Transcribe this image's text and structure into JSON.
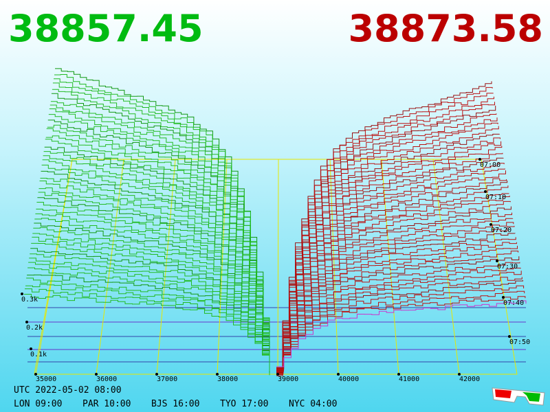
{
  "header": {
    "bid_price": "38857.45",
    "ask_price": "38873.58"
  },
  "price_axis": [
    "35000",
    "36000",
    "37000",
    "38000",
    "39000",
    "40000",
    "41000",
    "42000"
  ],
  "volume_axis": [
    "0.3k",
    "0.2k",
    "0.1k"
  ],
  "time_axis": [
    "07:00",
    "07:10",
    "07:20",
    "07:30",
    "07:40",
    "07:50"
  ],
  "footer": {
    "utc": "UTC 2022-05-02 08:00",
    "clocks": [
      "LON 09:00",
      "PAR 10:00",
      "BJS 16:00",
      "TYO 17:00",
      "NYC 04:00"
    ]
  }
}
